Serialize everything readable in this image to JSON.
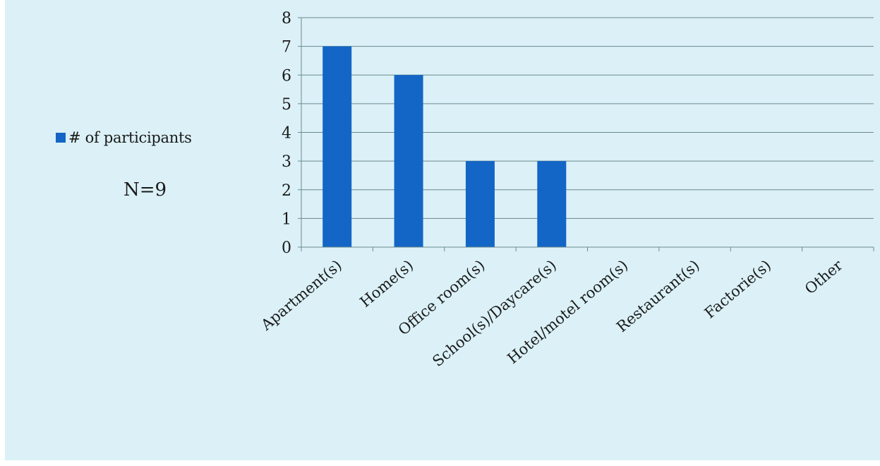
{
  "legend": {
    "label": "# of participants",
    "color": "#1366c6"
  },
  "note": "N=9",
  "colors": {
    "background": "#dbf1f7",
    "bar": "#1366c6",
    "grid": "#6b8a8f"
  },
  "chart_data": {
    "type": "bar",
    "categories": [
      "Apartment(s)",
      "Home(s)",
      "Office room(s)",
      "School(s)/Daycare(s)",
      "Hotel/motel room(s)",
      "Restaurant(s)",
      "Factorie(s)",
      "Other"
    ],
    "series": [
      {
        "name": "# of participants",
        "values": [
          7,
          6,
          3,
          3,
          0,
          0,
          0,
          0
        ]
      }
    ],
    "yticks": [
      "0",
      "1",
      "2",
      "3",
      "4",
      "5",
      "6",
      "7",
      "8"
    ],
    "ylim": [
      0,
      8
    ],
    "grid": true,
    "legend_position": "left",
    "xlabel": "",
    "ylabel": ""
  }
}
